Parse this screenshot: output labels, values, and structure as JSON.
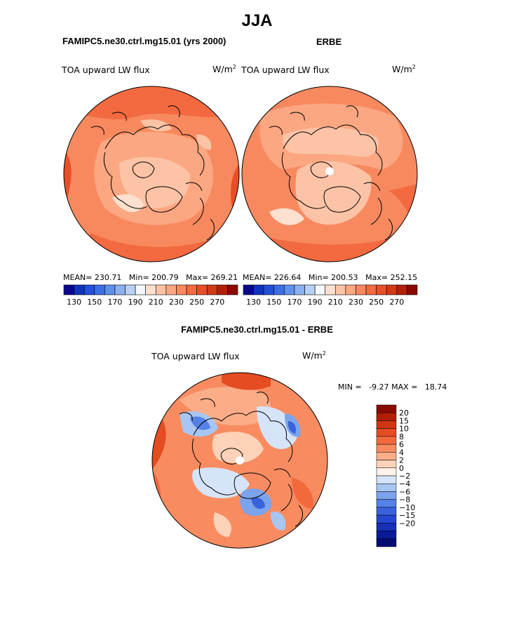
{
  "title": "JJA",
  "panels": [
    {
      "id": "model",
      "header": "FAMIPC5.ne30.ctrl.mg15.01 (yrs 2000)",
      "variable": "TOA upward LW flux",
      "units_base": "W/m",
      "units_exp": "2",
      "stats": {
        "mean_label": "MEAN=",
        "mean": "230.71",
        "min_label": "Min=",
        "min": "200.79",
        "max_label": "Max=",
        "max": "269.21"
      }
    },
    {
      "id": "obs",
      "header": "ERBE",
      "variable": "TOA upward LW flux",
      "units_base": "W/m",
      "units_exp": "2",
      "stats": {
        "mean_label": "MEAN=",
        "mean": "226.64",
        "min_label": "Min=",
        "min": "200.53",
        "max_label": "Max=",
        "max": "252.15"
      }
    }
  ],
  "abs_colorbar": {
    "colors": [
      "#08088e",
      "#1033c0",
      "#2250d8",
      "#3c6ee4",
      "#6090ea",
      "#8cb0f0",
      "#b8d0f6",
      "#f4f8ff",
      "#fde0cf",
      "#fcc3a6",
      "#fba782",
      "#f8895f",
      "#f36a40",
      "#e84f28",
      "#d23a16",
      "#b32008",
      "#8a0a00"
    ],
    "labels": [
      "130",
      "150",
      "170",
      "190",
      "210",
      "230",
      "250",
      "270"
    ]
  },
  "diff_panel": {
    "header": "FAMIPC5.ne30.ctrl.mg15.01 - ERBE",
    "variable": "TOA upward LW flux",
    "units_base": "W/m",
    "units_exp": "2",
    "min_label": "MIN =",
    "min": "-9.27",
    "max_label": "MAX =",
    "max": "18.74"
  },
  "diff_colorbar": {
    "colors": [
      "#8a0a00",
      "#b01e06",
      "#d03512",
      "#e54c22",
      "#f26a3c",
      "#f88c60",
      "#fbad88",
      "#fdd2b8",
      "#fff2ea",
      "#d6e4fa",
      "#a8c6f2",
      "#7ca4ec",
      "#5582e6",
      "#3a62dc",
      "#2446d0",
      "#1630b8",
      "#0a1a98",
      "#050c72"
    ],
    "labels": [
      "20",
      "15",
      "10",
      "8",
      "6",
      "4",
      "2",
      "0",
      "−2",
      "−4",
      "−6",
      "−8",
      "−10",
      "−15",
      "−20"
    ]
  },
  "chart_data": [
    {
      "type": "heatmap",
      "projection": "north-polar-stereographic",
      "title": "FAMIPC5.ne30.ctrl.mg15.01 (yrs 2000)",
      "variable": "TOA upward LW flux",
      "units": "W/m^2",
      "mean": 230.71,
      "min": 200.79,
      "max": 269.21,
      "contour_levels": [
        130,
        140,
        150,
        160,
        170,
        180,
        190,
        200,
        210,
        220,
        230,
        240,
        250,
        260,
        270
      ]
    },
    {
      "type": "heatmap",
      "projection": "north-polar-stereographic",
      "title": "ERBE",
      "variable": "TOA upward LW flux",
      "units": "W/m^2",
      "mean": 226.64,
      "min": 200.53,
      "max": 252.15,
      "contour_levels": [
        130,
        140,
        150,
        160,
        170,
        180,
        190,
        200,
        210,
        220,
        230,
        240,
        250,
        260,
        270
      ]
    },
    {
      "type": "heatmap",
      "projection": "north-polar-stereographic",
      "title": "FAMIPC5.ne30.ctrl.mg15.01 - ERBE",
      "variable": "TOA upward LW flux",
      "units": "W/m^2",
      "min": -9.27,
      "max": 18.74,
      "contour_levels": [
        -20,
        -15,
        -10,
        -8,
        -6,
        -4,
        -2,
        0,
        2,
        4,
        6,
        8,
        10,
        15,
        20
      ]
    }
  ]
}
